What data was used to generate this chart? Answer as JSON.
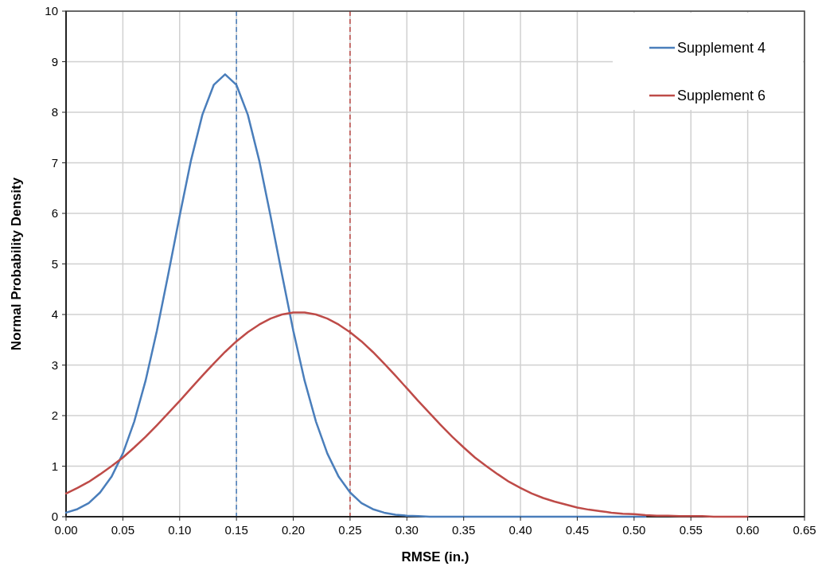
{
  "chart_data": {
    "type": "line",
    "xlabel": "RMSE (in.)",
    "ylabel": "Normal Probability Density",
    "x": [
      0,
      0.01,
      0.02,
      0.03,
      0.04,
      0.05,
      0.06,
      0.07,
      0.08,
      0.09,
      0.1,
      0.11,
      0.12,
      0.13,
      0.14,
      0.15,
      0.16,
      0.17,
      0.18,
      0.19,
      0.2,
      0.21,
      0.22,
      0.23,
      0.24,
      0.25,
      0.26,
      0.27,
      0.28,
      0.29,
      0.3,
      0.31,
      0.32,
      0.33,
      0.34,
      0.35,
      0.36,
      0.37,
      0.38,
      0.39,
      0.4,
      0.41,
      0.42,
      0.43,
      0.44,
      0.45,
      0.46,
      0.47,
      0.48,
      0.49,
      0.5,
      0.51,
      0.52,
      0.53,
      0.54,
      0.55,
      0.56,
      0.57,
      0.58,
      0.59,
      0.6
    ],
    "series": [
      {
        "name": "Supplement 4",
        "color": "#4a7ebb",
        "values": [
          0.08,
          0.15,
          0.27,
          0.48,
          0.79,
          1.25,
          1.88,
          2.69,
          3.68,
          4.8,
          5.95,
          7.05,
          7.95,
          8.54,
          8.75,
          8.54,
          7.95,
          7.05,
          5.95,
          4.8,
          3.68,
          2.69,
          1.88,
          1.25,
          0.79,
          0.48,
          0.27,
          0.15,
          0.08,
          0.04,
          0.02,
          0.01,
          0,
          0,
          0,
          0,
          0,
          0,
          0,
          0,
          0,
          0,
          0,
          0,
          0,
          0,
          0,
          0,
          0,
          0,
          0,
          0,
          null,
          null,
          null,
          null,
          null,
          null,
          null,
          null,
          null
        ]
      },
      {
        "name": "Supplement 6",
        "color": "#be4b48",
        "values": [
          0.46,
          0.57,
          0.69,
          0.84,
          1,
          1.17,
          1.37,
          1.58,
          1.81,
          2.05,
          2.29,
          2.54,
          2.79,
          3.03,
          3.26,
          3.47,
          3.65,
          3.8,
          3.92,
          4,
          4.04,
          4.04,
          4,
          3.92,
          3.8,
          3.65,
          3.47,
          3.26,
          3.03,
          2.79,
          2.54,
          2.29,
          2.05,
          1.81,
          1.58,
          1.37,
          1.17,
          1,
          0.84,
          0.69,
          0.57,
          0.46,
          0.37,
          0.3,
          0.24,
          0.18,
          0.14,
          0.11,
          0.08,
          0.06,
          0.05,
          0.03,
          0.02,
          0.02,
          0.01,
          0.01,
          0.01,
          0,
          0,
          0,
          0
        ]
      }
    ],
    "xlim": [
      0,
      0.65
    ],
    "xticks": [
      {
        "value": 0,
        "label": "0.00"
      },
      {
        "value": 0.05,
        "label": "0.05"
      },
      {
        "value": 0.1,
        "label": "0.10"
      },
      {
        "value": 0.15,
        "label": "0.15"
      },
      {
        "value": 0.2,
        "label": "0.20"
      },
      {
        "value": 0.25,
        "label": "0.25"
      },
      {
        "value": 0.3,
        "label": "0.30"
      },
      {
        "value": 0.35,
        "label": "0.35"
      },
      {
        "value": 0.4,
        "label": "0.40"
      },
      {
        "value": 0.45,
        "label": "0.45"
      },
      {
        "value": 0.5,
        "label": "0.50"
      },
      {
        "value": 0.55,
        "label": "0.55"
      },
      {
        "value": 0.6,
        "label": "0.60"
      },
      {
        "value": 0.65,
        "label": "0.65"
      }
    ],
    "ylim": [
      0,
      10
    ],
    "yticks": [
      0,
      1,
      2,
      3,
      4,
      5,
      6,
      7,
      8,
      9,
      10
    ],
    "ref_lines": [
      {
        "axis": "x",
        "value": 0.15,
        "color": "#4a7ebb",
        "line_style": "dashed"
      },
      {
        "axis": "x",
        "value": 0.25,
        "color": "#be4b48",
        "line_style": "dashed"
      }
    ],
    "grid": true,
    "legend": "top right",
    "marker": "none",
    "line_style": "solid"
  }
}
